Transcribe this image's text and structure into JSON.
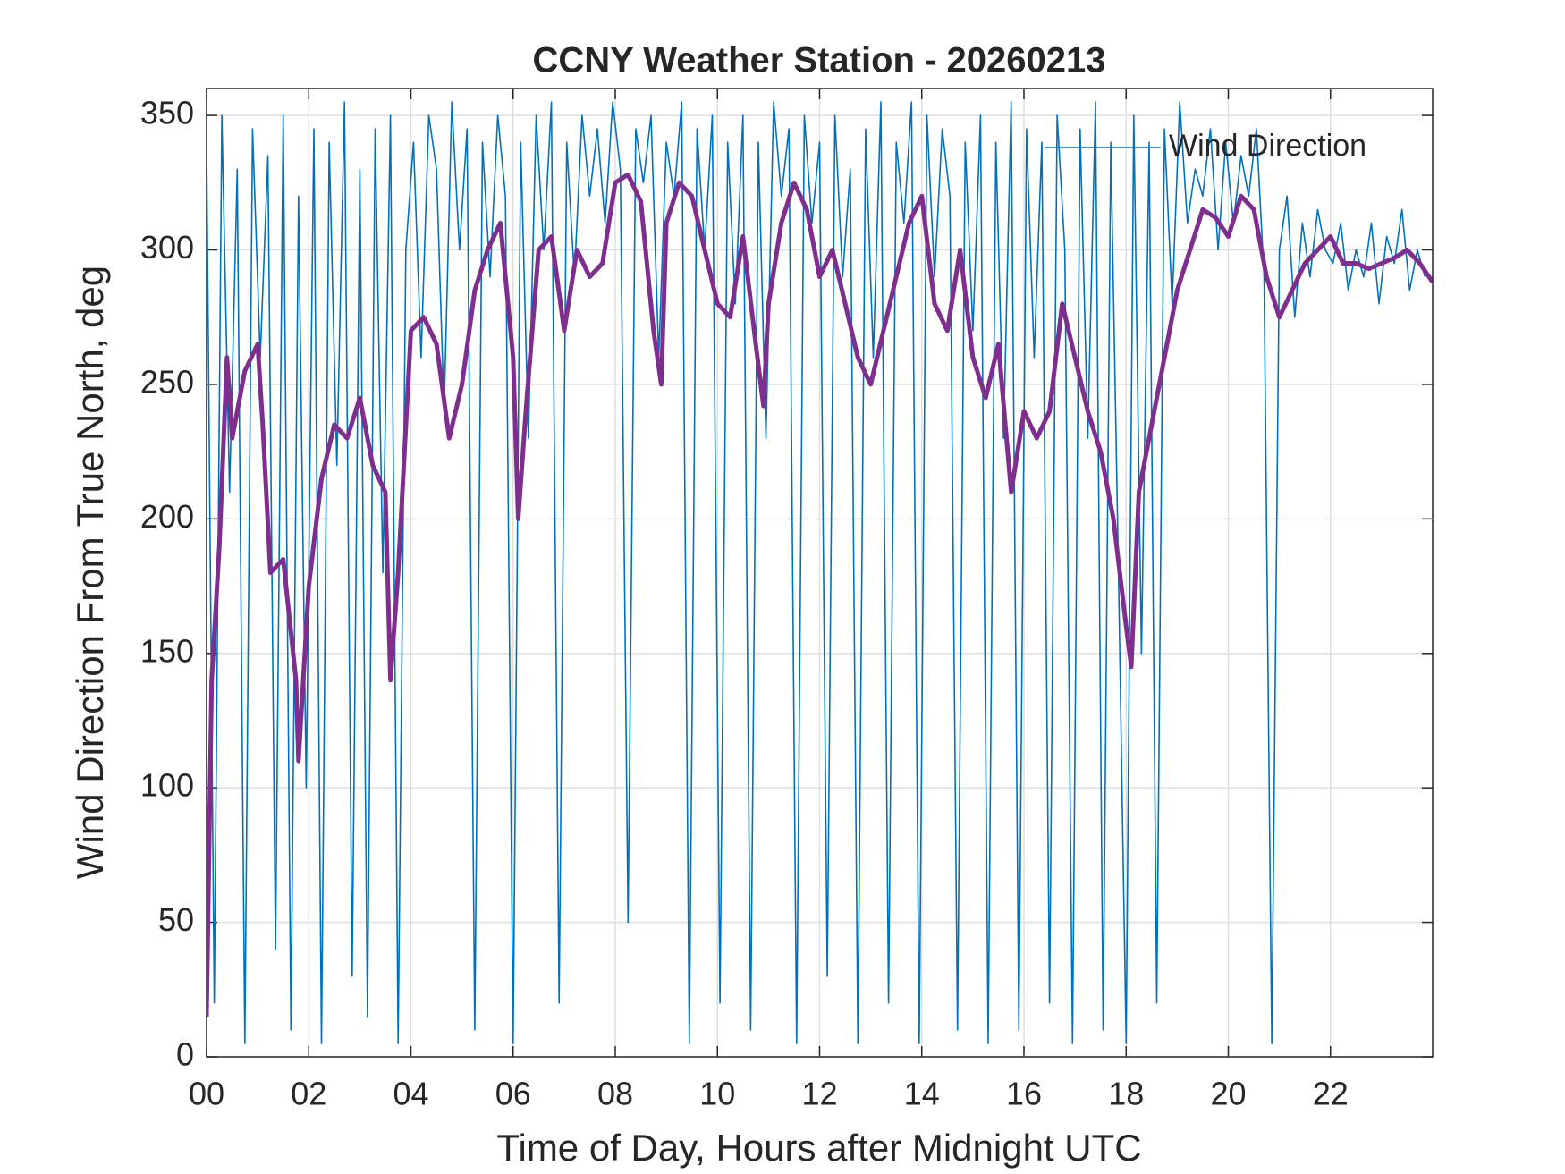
{
  "chart_data": {
    "type": "line",
    "title": "CCNY Weather Station - 20260213",
    "xlabel": "Time of Day, Hours after Midnight UTC",
    "ylabel": "Wind Direction From True North, deg",
    "xlim": [
      0,
      24
    ],
    "ylim": [
      0,
      360
    ],
    "xticks": [
      {
        "value": 0,
        "label": "00"
      },
      {
        "value": 2,
        "label": "02"
      },
      {
        "value": 4,
        "label": "04"
      },
      {
        "value": 6,
        "label": "06"
      },
      {
        "value": 8,
        "label": "08"
      },
      {
        "value": 10,
        "label": "10"
      },
      {
        "value": 12,
        "label": "12"
      },
      {
        "value": 14,
        "label": "14"
      },
      {
        "value": 16,
        "label": "16"
      },
      {
        "value": 18,
        "label": "18"
      },
      {
        "value": 20,
        "label": "20"
      },
      {
        "value": 22,
        "label": "22"
      }
    ],
    "yticks": [
      0,
      50,
      100,
      150,
      200,
      250,
      300,
      350
    ],
    "grid": true,
    "legend": "upper right",
    "series": [
      {
        "name": "Wind Direction",
        "color": "#0072bd",
        "x": [
          0,
          0.15,
          0.3,
          0.45,
          0.6,
          0.75,
          0.9,
          1.05,
          1.2,
          1.35,
          1.5,
          1.65,
          1.8,
          1.95,
          2.1,
          2.25,
          2.4,
          2.55,
          2.7,
          2.85,
          3,
          3.15,
          3.3,
          3.45,
          3.6,
          3.75,
          3.9,
          4.05,
          4.2,
          4.35,
          4.5,
          4.65,
          4.8,
          4.95,
          5.1,
          5.25,
          5.4,
          5.55,
          5.7,
          5.85,
          6,
          6.15,
          6.3,
          6.45,
          6.6,
          6.75,
          6.9,
          7.05,
          7.2,
          7.35,
          7.5,
          7.65,
          7.8,
          7.95,
          8.1,
          8.25,
          8.4,
          8.55,
          8.7,
          8.85,
          9,
          9.15,
          9.3,
          9.45,
          9.6,
          9.75,
          9.9,
          10.05,
          10.2,
          10.35,
          10.5,
          10.65,
          10.8,
          10.95,
          11.1,
          11.25,
          11.4,
          11.55,
          11.7,
          11.85,
          12,
          12.15,
          12.3,
          12.45,
          12.6,
          12.75,
          12.9,
          13.05,
          13.2,
          13.35,
          13.5,
          13.65,
          13.8,
          13.95,
          14.1,
          14.25,
          14.4,
          14.55,
          14.7,
          14.85,
          15,
          15.15,
          15.3,
          15.45,
          15.6,
          15.75,
          15.9,
          16.05,
          16.2,
          16.35,
          16.5,
          16.65,
          16.8,
          16.95,
          17.1,
          17.25,
          17.4,
          17.55,
          17.7,
          17.85,
          18,
          18.15,
          18.3,
          18.45,
          18.6,
          18.75,
          18.9,
          19.05,
          19.2,
          19.35,
          19.5,
          19.65,
          19.8,
          19.95,
          20.1,
          20.25,
          20.4,
          20.55,
          20.7,
          20.85,
          21,
          21.15,
          21.3,
          21.45,
          21.6,
          21.75,
          21.9,
          22.05,
          22.2,
          22.35,
          22.5,
          22.65,
          22.8,
          22.95,
          23.1,
          23.25,
          23.4,
          23.55,
          23.7,
          23.85
        ],
        "values": [
          340,
          20,
          350,
          210,
          330,
          5,
          345,
          260,
          335,
          40,
          350,
          10,
          320,
          100,
          345,
          5,
          340,
          220,
          355,
          30,
          330,
          15,
          345,
          180,
          350,
          5,
          300,
          340,
          260,
          350,
          330,
          240,
          355,
          300,
          345,
          10,
          340,
          290,
          350,
          320,
          5,
          340,
          230,
          350,
          300,
          355,
          20,
          340,
          290,
          350,
          320,
          345,
          310,
          355,
          330,
          50,
          345,
          325,
          350,
          260,
          340,
          320,
          355,
          5,
          345,
          300,
          350,
          20,
          340,
          280,
          350,
          10,
          340,
          230,
          355,
          320,
          345,
          5,
          350,
          310,
          340,
          30,
          350,
          290,
          330,
          5,
          345,
          260,
          355,
          20,
          340,
          310,
          355,
          5,
          350,
          290,
          345,
          320,
          10,
          340,
          270,
          350,
          5,
          340,
          230,
          355,
          10,
          345,
          260,
          340,
          20,
          350,
          300,
          5,
          345,
          230,
          355,
          10,
          340,
          180,
          5,
          350,
          150,
          340,
          20,
          345,
          280,
          355,
          310,
          330,
          320,
          345,
          300,
          340,
          310,
          335,
          320,
          345,
          290,
          5,
          300,
          320,
          275,
          310,
          290,
          315,
          300,
          295,
          310,
          285,
          300,
          290,
          310,
          280,
          305,
          295,
          315,
          285,
          300,
          290
        ]
      },
      {
        "color": "#7e2f8e",
        "x": [
          0,
          0.1,
          0.25,
          0.4,
          0.5,
          0.75,
          1,
          1.1,
          1.25,
          1.5,
          1.75,
          1.8,
          2,
          2.25,
          2.5,
          2.75,
          3,
          3.25,
          3.5,
          3.6,
          3.75,
          4,
          4.25,
          4.5,
          4.75,
          5,
          5.25,
          5.5,
          5.75,
          6,
          6.1,
          6.25,
          6.5,
          6.75,
          7,
          7.25,
          7.5,
          7.75,
          8,
          8.25,
          8.5,
          8.75,
          8.9,
          9,
          9.25,
          9.5,
          9.75,
          10,
          10.25,
          10.5,
          10.75,
          10.9,
          11,
          11.25,
          11.5,
          11.75,
          12,
          12.25,
          12.5,
          12.75,
          13,
          13.25,
          13.5,
          13.75,
          14,
          14.25,
          14.5,
          14.75,
          15,
          15.25,
          15.5,
          15.75,
          16,
          16.25,
          16.5,
          16.75,
          17,
          17.25,
          17.5,
          17.75,
          18,
          18.1,
          18.25,
          18.5,
          18.75,
          19,
          19.25,
          19.5,
          19.75,
          20,
          20.25,
          20.5,
          20.75,
          21,
          21.25,
          21.5,
          21.75,
          22,
          22.25,
          22.5,
          22.75,
          23,
          23.25,
          23.5,
          23.75,
          24
        ],
        "values": [
          15,
          140,
          190,
          260,
          230,
          255,
          265,
          235,
          180,
          185,
          140,
          110,
          175,
          215,
          235,
          230,
          245,
          220,
          210,
          140,
          180,
          270,
          275,
          265,
          230,
          250,
          285,
          300,
          310,
          260,
          200,
          240,
          300,
          305,
          270,
          300,
          290,
          295,
          325,
          328,
          318,
          270,
          250,
          310,
          325,
          320,
          300,
          280,
          275,
          305,
          265,
          242,
          280,
          310,
          325,
          315,
          290,
          300,
          280,
          260,
          250,
          270,
          290,
          310,
          320,
          280,
          270,
          300,
          260,
          245,
          265,
          210,
          240,
          230,
          240,
          280,
          260,
          240,
          225,
          200,
          160,
          145,
          210,
          235,
          260,
          285,
          300,
          315,
          312,
          305,
          320,
          315,
          290,
          275,
          285,
          295,
          300,
          305,
          295,
          295,
          293,
          295,
          297,
          300,
          295,
          288
        ]
      }
    ]
  }
}
